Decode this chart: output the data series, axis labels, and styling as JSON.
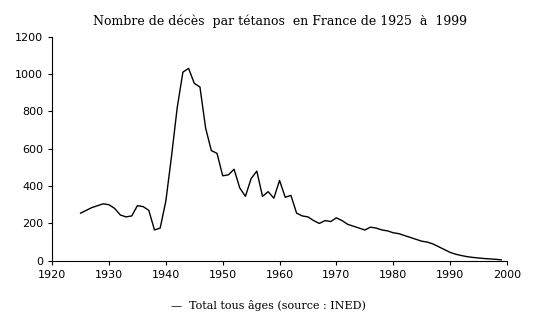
{
  "title": "Nombre de décès  par tétanos  en France de 1925  à  1999",
  "legend_label": "—  Total tous âges (source : INED)",
  "line_color": "#000000",
  "background_color": "#ffffff",
  "xlim": [
    1920,
    2000
  ],
  "ylim": [
    0,
    1200
  ],
  "xticks": [
    1920,
    1930,
    1940,
    1950,
    1960,
    1970,
    1980,
    1990,
    2000
  ],
  "yticks": [
    0,
    200,
    400,
    600,
    800,
    1000,
    1200
  ],
  "years": [
    1925,
    1926,
    1927,
    1928,
    1929,
    1930,
    1931,
    1932,
    1933,
    1934,
    1935,
    1936,
    1937,
    1938,
    1939,
    1940,
    1941,
    1942,
    1943,
    1944,
    1945,
    1946,
    1947,
    1948,
    1949,
    1950,
    1951,
    1952,
    1953,
    1954,
    1955,
    1956,
    1957,
    1958,
    1959,
    1960,
    1961,
    1962,
    1963,
    1964,
    1965,
    1966,
    1967,
    1968,
    1969,
    1970,
    1971,
    1972,
    1973,
    1974,
    1975,
    1976,
    1977,
    1978,
    1979,
    1980,
    1981,
    1982,
    1983,
    1984,
    1985,
    1986,
    1987,
    1988,
    1989,
    1990,
    1991,
    1992,
    1993,
    1994,
    1995,
    1996,
    1997,
    1998,
    1999
  ],
  "deaths": [
    255,
    270,
    285,
    295,
    305,
    300,
    280,
    245,
    235,
    240,
    295,
    290,
    270,
    165,
    175,
    320,
    560,
    820,
    1010,
    1030,
    950,
    930,
    710,
    590,
    575,
    455,
    460,
    490,
    390,
    345,
    440,
    480,
    345,
    370,
    335,
    430,
    340,
    350,
    255,
    240,
    235,
    215,
    200,
    215,
    210,
    230,
    215,
    195,
    185,
    175,
    165,
    180,
    175,
    165,
    160,
    150,
    145,
    135,
    125,
    115,
    105,
    100,
    90,
    75,
    60,
    45,
    35,
    28,
    22,
    18,
    15,
    12,
    10,
    8,
    5
  ]
}
